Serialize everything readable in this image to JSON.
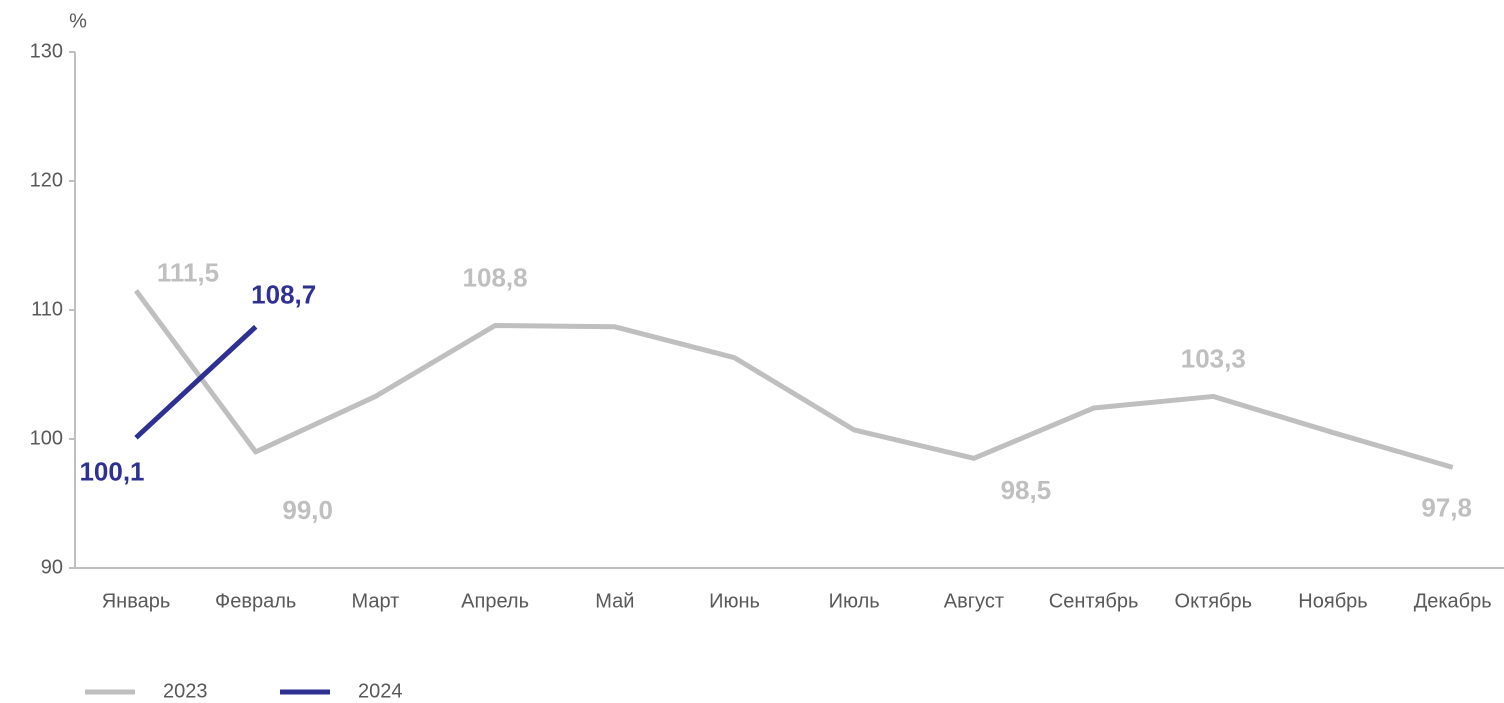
{
  "chart_data": {
    "type": "line",
    "y_unit": "%",
    "categories": [
      "Январь",
      "Февраль",
      "Март",
      "Апрель",
      "Май",
      "Июнь",
      "Июль",
      "Август",
      "Сентябрь",
      "Октябрь",
      "Ноябрь",
      "Декабрь"
    ],
    "series": [
      {
        "name": "2023",
        "color": "#bfbfbf",
        "values": [
          111.5,
          99.0,
          103.3,
          108.8,
          108.7,
          106.3,
          100.7,
          98.5,
          102.4,
          103.3,
          100.5,
          97.8
        ],
        "value_labels": [
          "111,5",
          "99,0",
          null,
          "108,8",
          null,
          null,
          null,
          "98,5",
          null,
          "103,3",
          null,
          "97,8"
        ]
      },
      {
        "name": "2024",
        "color": "#2e3192",
        "values": [
          100.1,
          108.7,
          null,
          null,
          null,
          null,
          null,
          null,
          null,
          null,
          null,
          null
        ],
        "value_labels": [
          "100,1",
          "108,7",
          null,
          null,
          null,
          null,
          null,
          null,
          null,
          null,
          null,
          null
        ]
      }
    ],
    "ylim": [
      90,
      130
    ],
    "yticks": [
      90,
      100,
      110,
      120,
      130
    ],
    "grid": false
  }
}
